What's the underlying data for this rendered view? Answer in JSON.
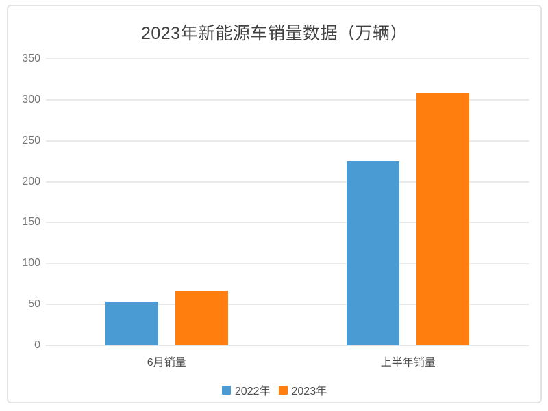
{
  "chart_data": {
    "type": "bar",
    "title": "2023年新能源车销量数据（万辆）",
    "categories": [
      "6月销量",
      "上半年销量"
    ],
    "series": [
      {
        "name": "2022年",
        "color": "#4A9AD4",
        "values": [
          53.2,
          224.7
        ]
      },
      {
        "name": "2023年",
        "color": "#FF7E0E",
        "values": [
          66.5,
          308.6
        ]
      }
    ],
    "xlabel": "",
    "ylabel": "",
    "ylim": [
      0,
      350
    ],
    "yticks": [
      0,
      50,
      100,
      150,
      200,
      250,
      300,
      350
    ],
    "grid": "horizontal",
    "legend_position": "bottom",
    "colors": {
      "gridline": "#e9e9e9",
      "axis_line": "#e3e3e3",
      "tick_label": "#757575",
      "category_label": "#4d4d4d",
      "title": "#404040",
      "card_border": "#e4e4e4",
      "background": "#ffffff"
    }
  }
}
